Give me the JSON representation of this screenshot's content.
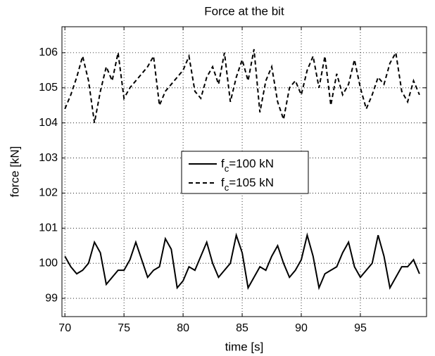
{
  "chart_data": {
    "type": "line",
    "title": "Force at the bit",
    "xlabel": "time [s]",
    "ylabel": "force [kN]",
    "x": [
      70,
      70.5,
      71,
      71.5,
      72,
      72.5,
      73,
      73.5,
      74,
      74.5,
      75,
      75.5,
      76,
      76.5,
      77,
      77.5,
      78,
      78.5,
      79,
      79.5,
      80,
      80.5,
      81,
      81.5,
      82,
      82.5,
      83,
      83.5,
      84,
      84.5,
      85,
      85.5,
      86,
      86.5,
      87,
      87.5,
      88,
      88.5,
      89,
      89.5,
      90,
      90.5,
      91,
      91.5,
      92,
      92.5,
      93,
      93.5,
      94,
      94.5,
      95,
      95.5,
      96,
      96.5,
      97,
      97.5,
      98,
      98.5,
      99,
      99.5,
      100
    ],
    "series": [
      {
        "name": "f_c=100 kN",
        "color": "#000000",
        "linestyle": "solid",
        "values": [
          100.2,
          99.9,
          99.7,
          99.8,
          100.0,
          100.6,
          100.3,
          99.4,
          99.6,
          99.8,
          99.8,
          100.1,
          100.6,
          100.1,
          99.6,
          99.8,
          99.9,
          100.7,
          100.4,
          99.3,
          99.5,
          99.9,
          99.8,
          100.2,
          100.6,
          100.0,
          99.6,
          99.8,
          100.0,
          100.8,
          100.3,
          99.3,
          99.6,
          99.9,
          99.8,
          100.2,
          100.5,
          100.0,
          99.6,
          99.8,
          100.1,
          100.8,
          100.2,
          99.3,
          99.7,
          99.8,
          99.9,
          100.3,
          100.6,
          99.9,
          99.6,
          99.8,
          100.0,
          100.8,
          100.2,
          99.3,
          99.6,
          99.9,
          99.9,
          100.1,
          99.7
        ]
      },
      {
        "name": "f_c=105 kN",
        "color": "#000000",
        "linestyle": "dashed",
        "values": [
          104.4,
          104.8,
          105.3,
          105.9,
          105.2,
          104.0,
          104.9,
          105.6,
          105.2,
          106.0,
          104.7,
          105.0,
          105.2,
          105.4,
          105.6,
          105.9,
          104.5,
          104.9,
          105.1,
          105.3,
          105.5,
          105.9,
          104.9,
          104.7,
          105.3,
          105.6,
          105.1,
          106.0,
          104.6,
          105.3,
          105.8,
          105.2,
          106.1,
          104.3,
          105.2,
          105.6,
          104.6,
          104.1,
          105.0,
          105.2,
          104.8,
          105.5,
          105.9,
          105.0,
          105.9,
          104.5,
          105.4,
          104.8,
          105.1,
          105.8,
          105.0,
          104.4,
          104.8,
          105.3,
          105.1,
          105.7,
          106.0,
          104.9,
          104.6,
          105.2,
          104.8
        ]
      }
    ],
    "xlim": [
      69.75,
      100.6
    ],
    "xticks": [
      70,
      75,
      80,
      85,
      90,
      95
    ],
    "ylim": [
      98.48,
      106.74
    ],
    "yticks": [
      99,
      100,
      101,
      102,
      103,
      104,
      105,
      106
    ],
    "grid": true,
    "legend": "center"
  }
}
